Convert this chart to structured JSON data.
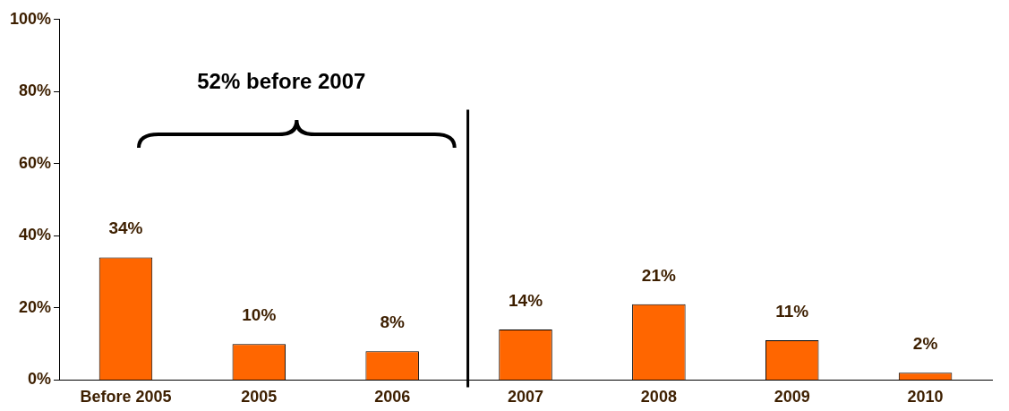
{
  "chart_data": {
    "type": "bar",
    "categories": [
      "Before 2005",
      "2005",
      "2006",
      "2007",
      "2008",
      "2009",
      "2010"
    ],
    "values": [
      34,
      10,
      8,
      14,
      21,
      11,
      2
    ],
    "value_labels": [
      "34%",
      "10%",
      "8%",
      "14%",
      "21%",
      "11%",
      "2%"
    ],
    "color": "#ff6600",
    "ylim": [
      0,
      100
    ],
    "yticks": [
      {
        "value": 0,
        "label": "0%"
      },
      {
        "value": 20,
        "label": "20%"
      },
      {
        "value": 40,
        "label": "40%"
      },
      {
        "value": 60,
        "label": "60%"
      },
      {
        "value": 80,
        "label": "80%"
      },
      {
        "value": 100,
        "label": "100%"
      }
    ],
    "annotations": [
      "52% before 2007"
    ],
    "ref_lines": [
      {
        "axis": "x",
        "value": "2007",
        "color": "#000000"
      }
    ],
    "grid": false,
    "legend": false
  }
}
